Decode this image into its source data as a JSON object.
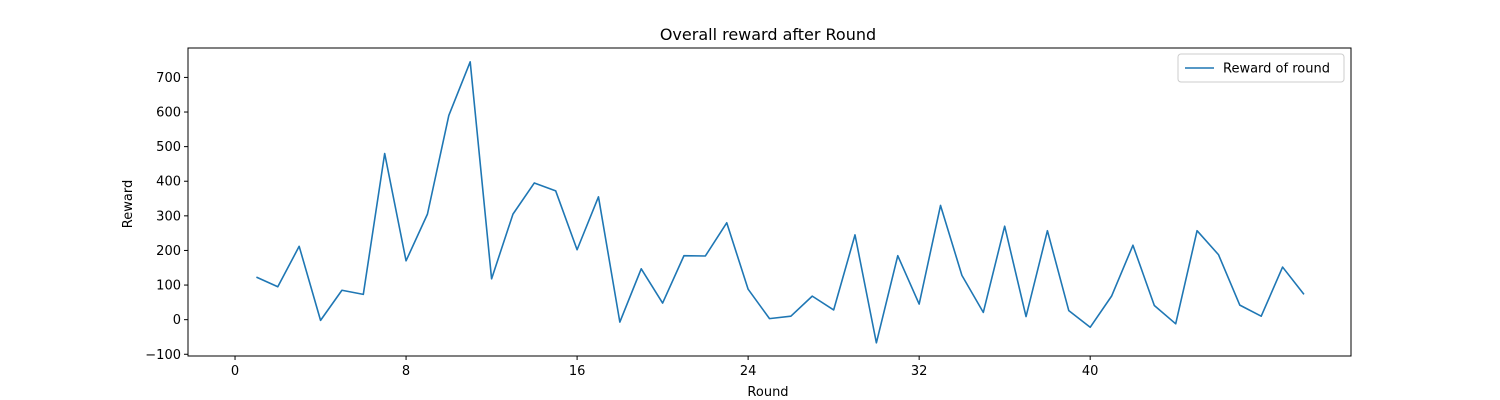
{
  "chart_data": {
    "type": "line",
    "title": "Overall reward after Round",
    "xlabel": "Round",
    "ylabel": "Reward",
    "xlim": [
      -2.2,
      52.2
    ],
    "ylim": [
      -105,
      785
    ],
    "xticks": [
      0,
      8,
      16,
      24,
      32,
      40
    ],
    "yticks": [
      -100,
      0,
      100,
      200,
      300,
      400,
      500,
      600,
      700
    ],
    "grid": false,
    "legend_position": "top-right",
    "series": [
      {
        "name": "Reward of round",
        "color": "#1f77b4",
        "x": [
          1,
          2,
          3,
          4,
          5,
          6,
          7,
          8,
          9,
          10,
          11,
          12,
          13,
          14,
          15,
          16,
          17,
          18,
          19,
          20,
          21,
          22,
          23,
          24,
          25,
          26,
          27,
          28,
          29,
          30,
          31,
          32,
          33,
          34,
          35,
          36,
          37,
          38,
          39,
          40,
          41,
          42,
          43,
          44,
          45,
          46,
          47,
          48,
          49,
          50
        ],
        "values": [
          123,
          95,
          212,
          -2,
          85,
          73,
          480,
          170,
          305,
          590,
          745,
          118,
          305,
          395,
          372,
          202,
          355,
          -7,
          147,
          48,
          185,
          184,
          280,
          88,
          3,
          10,
          68,
          28,
          245,
          -67,
          185,
          45,
          330,
          128,
          21,
          270,
          9,
          257,
          26,
          -22,
          68,
          215,
          41,
          -12,
          257,
          188,
          42,
          10,
          152,
          73
        ]
      }
    ]
  }
}
